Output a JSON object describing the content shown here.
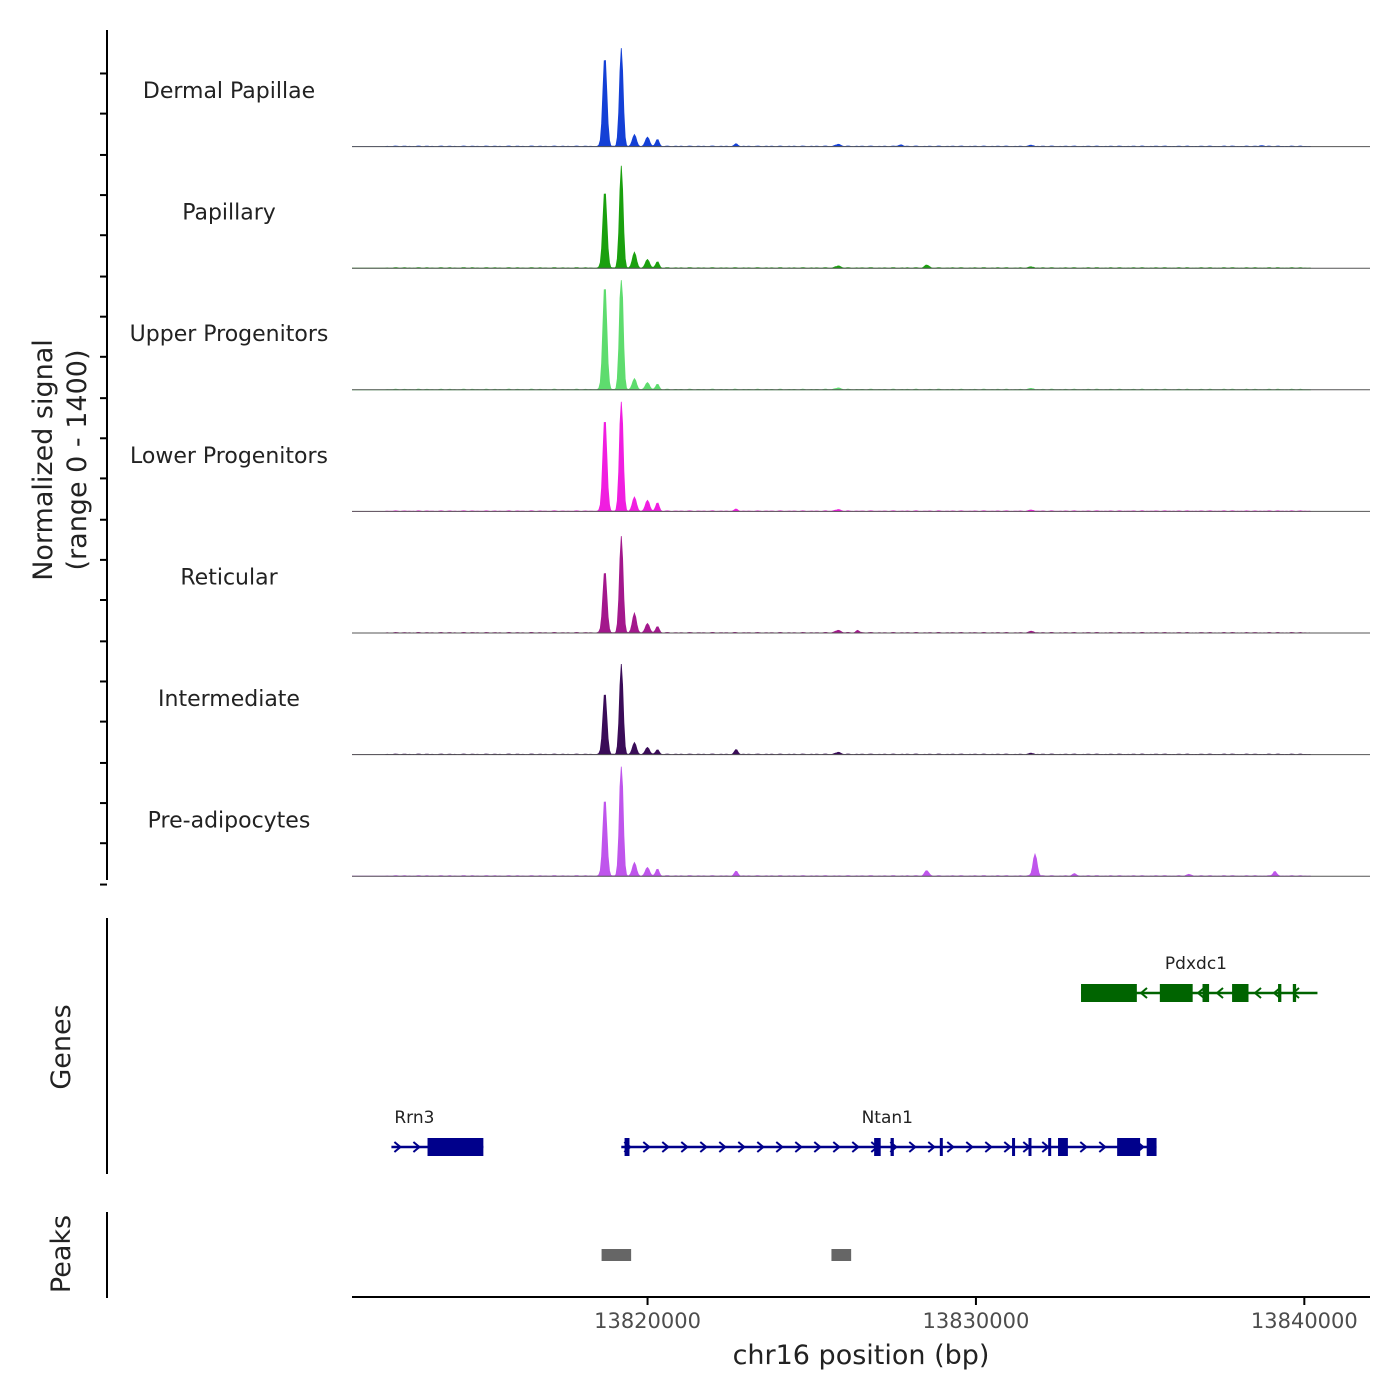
{
  "chart_data": {
    "type": "area",
    "title": "",
    "region": {
      "chrom": "chr16",
      "start": 13811000,
      "end": 13842000
    },
    "xlabel": "chr16 position (bp)",
    "x_ticks": [
      {
        "value": 13820000,
        "label": "13820000"
      },
      {
        "value": 13830000,
        "label": "13830000"
      },
      {
        "value": 13840000,
        "label": "13840000"
      }
    ],
    "coverage": {
      "ylabel_line1": "Normalized signal",
      "ylabel_line2": "(range 0 - 1400)",
      "ylim": [
        0,
        1400
      ],
      "tracks": [
        {
          "name": "Dermal Papillae",
          "color": "#1440d6",
          "peaks": [
            [
              13818700,
              1160,
              60
            ],
            [
              13819200,
              1250,
              55
            ],
            [
              13819600,
              150,
              60
            ],
            [
              13820000,
              120,
              60
            ],
            [
              13820300,
              90,
              50
            ],
            [
              13822700,
              30,
              50
            ],
            [
              13825800,
              25,
              80
            ],
            [
              13827700,
              20,
              60
            ],
            [
              13831700,
              15,
              60
            ],
            [
              13838700,
              12,
              50
            ]
          ]
        },
        {
          "name": "Papillary",
          "color": "#1aa00e",
          "peaks": [
            [
              13818700,
              1000,
              60
            ],
            [
              13819200,
              1300,
              55
            ],
            [
              13819600,
              200,
              60
            ],
            [
              13820000,
              110,
              60
            ],
            [
              13820300,
              80,
              50
            ],
            [
              13825800,
              25,
              80
            ],
            [
              13828500,
              40,
              60
            ],
            [
              13831700,
              15,
              60
            ]
          ]
        },
        {
          "name": "Upper Progenitors",
          "color": "#5edc6e",
          "peaks": [
            [
              13818700,
              1350,
              60
            ],
            [
              13819200,
              1520,
              55
            ],
            [
              13819600,
              140,
              60
            ],
            [
              13820000,
              90,
              60
            ],
            [
              13820300,
              70,
              50
            ],
            [
              13825800,
              20,
              80
            ],
            [
              13831700,
              15,
              60
            ]
          ]
        },
        {
          "name": "Lower Progenitors",
          "color": "#f01ee0",
          "peaks": [
            [
              13818700,
              1200,
              60
            ],
            [
              13819200,
              1450,
              55
            ],
            [
              13819600,
              180,
              60
            ],
            [
              13820000,
              140,
              60
            ],
            [
              13820300,
              110,
              50
            ],
            [
              13822700,
              25,
              50
            ],
            [
              13825800,
              20,
              80
            ],
            [
              13831700,
              15,
              60
            ]
          ]
        },
        {
          "name": "Reticular",
          "color": "#a3188c",
          "peaks": [
            [
              13818700,
              800,
              60
            ],
            [
              13819200,
              1230,
              55
            ],
            [
              13819600,
              250,
              60
            ],
            [
              13820000,
              120,
              60
            ],
            [
              13820300,
              80,
              50
            ],
            [
              13825800,
              30,
              80
            ],
            [
              13826400,
              30,
              50
            ],
            [
              13831700,
              20,
              60
            ]
          ]
        },
        {
          "name": "Intermediate",
          "color": "#3a0c58",
          "peaks": [
            [
              13818700,
              800,
              60
            ],
            [
              13819200,
              1150,
              55
            ],
            [
              13819600,
              150,
              60
            ],
            [
              13820000,
              90,
              60
            ],
            [
              13820300,
              60,
              50
            ],
            [
              13822700,
              60,
              50
            ],
            [
              13825800,
              25,
              80
            ],
            [
              13831700,
              15,
              60
            ]
          ]
        },
        {
          "name": "Pre-adipocytes",
          "color": "#bf55ec",
          "peaks": [
            [
              13818700,
              1000,
              60
            ],
            [
              13819200,
              1480,
              55
            ],
            [
              13819600,
              170,
              60
            ],
            [
              13820000,
              110,
              60
            ],
            [
              13820300,
              90,
              50
            ],
            [
              13822700,
              60,
              50
            ],
            [
              13828500,
              70,
              60
            ],
            [
              13831800,
              280,
              60
            ],
            [
              13839100,
              60,
              50
            ],
            [
              13833000,
              25,
              60
            ],
            [
              13836500,
              20,
              60
            ]
          ]
        }
      ]
    },
    "genes": {
      "ylabel": "Genes",
      "items": [
        {
          "name": "Pdxdc1",
          "strand": "-",
          "color": "#006400",
          "start": 13833200,
          "end": 13840400,
          "exons": [
            [
              13833200,
              13834900
            ],
            [
              13835600,
              13836600
            ],
            [
              13836900,
              13837100
            ],
            [
              13837800,
              13838300
            ],
            [
              13839200,
              13839300
            ],
            [
              13839650,
              13839750
            ]
          ]
        },
        {
          "name": "Rrn3",
          "strand": "+",
          "color": "#00008b",
          "start": 13812200,
          "end": 13815000,
          "exons": [
            [
              13813300,
              13815000
            ]
          ]
        },
        {
          "name": "Ntan1",
          "strand": "+",
          "color": "#00008b",
          "start": 13819200,
          "end": 13835500,
          "exons": [
            [
              13819300,
              13819450
            ],
            [
              13826900,
              13827100
            ],
            [
              13827400,
              13827500
            ],
            [
              13828900,
              13828950
            ],
            [
              13831100,
              13831150
            ],
            [
              13831600,
              13831650
            ],
            [
              13832200,
              13832250
            ],
            [
              13832500,
              13832800
            ],
            [
              13834300,
              13835000
            ],
            [
              13835200,
              13835500
            ]
          ]
        }
      ]
    },
    "peaks": {
      "ylabel": "Peaks",
      "color": "#666666",
      "items": [
        [
          13818600,
          13819500
        ],
        [
          13825600,
          13826200
        ]
      ]
    }
  }
}
